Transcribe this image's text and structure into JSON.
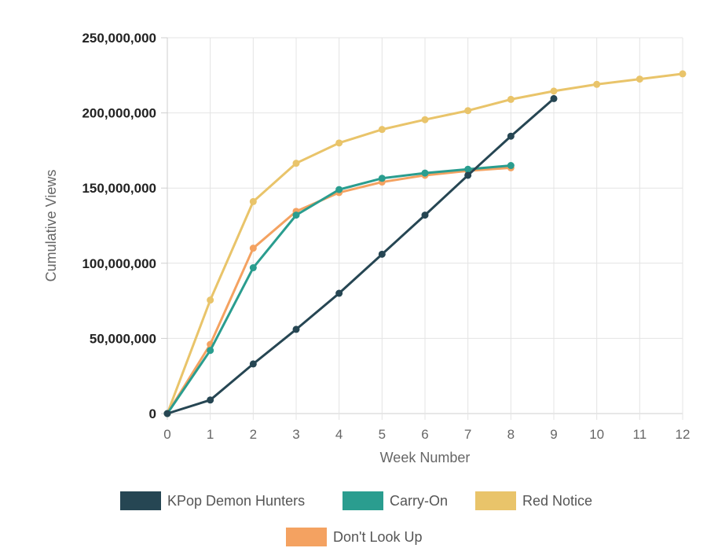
{
  "chart_data": {
    "type": "line",
    "title": "",
    "xlabel": "Week Number",
    "ylabel": "Cumulative Views",
    "x": [
      0,
      1,
      2,
      3,
      4,
      5,
      6,
      7,
      8,
      9,
      10,
      11,
      12
    ],
    "xlim": [
      0,
      12
    ],
    "ylim": [
      0,
      250000000
    ],
    "yticks": [
      "0",
      "50,000,000",
      "100,000,000",
      "150,000,000",
      "200,000,000",
      "250,000,000"
    ],
    "ytick_values": [
      0,
      50000000,
      100000000,
      150000000,
      200000000,
      250000000
    ],
    "xticks": [
      "0",
      "1",
      "2",
      "3",
      "4",
      "5",
      "6",
      "7",
      "8",
      "9",
      "10",
      "11",
      "12"
    ],
    "grid": true,
    "legend_position": "bottom",
    "series": [
      {
        "name": "KPop Demon Hunters",
        "color": "#264653",
        "x": [
          0,
          1,
          2,
          3,
          4,
          5,
          6,
          7,
          8,
          9
        ],
        "values": [
          0,
          9000000,
          33000000,
          56000000,
          80000000,
          106000000,
          132000000,
          158500000,
          184500000,
          209500000
        ]
      },
      {
        "name": "Carry-On",
        "color": "#2a9d8f",
        "x": [
          0,
          1,
          2,
          3,
          4,
          5,
          6,
          7,
          8
        ],
        "values": [
          0,
          42000000,
          97000000,
          132000000,
          149000000,
          156500000,
          160000000,
          162500000,
          165000000
        ]
      },
      {
        "name": "Red Notice",
        "color": "#e9c46a",
        "x": [
          0,
          1,
          2,
          3,
          4,
          5,
          6,
          7,
          8,
          9,
          10,
          11,
          12
        ],
        "values": [
          0,
          75500000,
          141000000,
          166500000,
          180000000,
          189000000,
          195500000,
          201500000,
          209000000,
          214500000,
          219000000,
          222500000,
          226000000
        ]
      },
      {
        "name": "Don't Look Up",
        "color": "#f4a261",
        "x": [
          0,
          1,
          2,
          3,
          4,
          5,
          6,
          7,
          8
        ],
        "values": [
          0,
          46000000,
          110000000,
          134500000,
          147000000,
          154000000,
          158500000,
          161500000,
          163500000
        ]
      }
    ]
  }
}
